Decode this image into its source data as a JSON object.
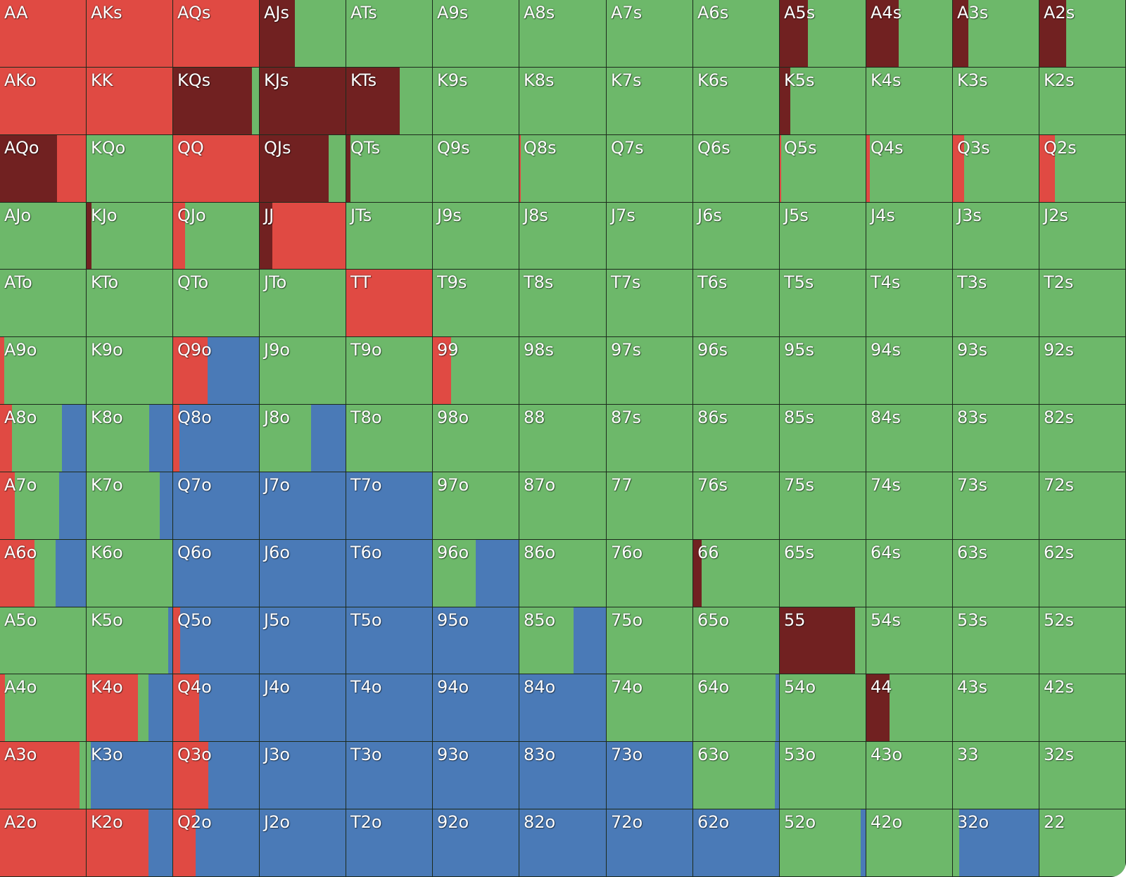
{
  "colors": {
    "raise": "#e04a43",
    "allin": "#712121",
    "call": "#6db86a",
    "fold": "#4a7ab7"
  },
  "rows": [
    [
      {
        "hand": "AA",
        "mix": {
          "raise": 1.0
        }
      },
      {
        "hand": "AKs",
        "mix": {
          "raise": 1.0
        }
      },
      {
        "hand": "AQs",
        "mix": {
          "raise": 1.0
        }
      },
      {
        "hand": "AJs",
        "mix": {
          "allin": 0.41,
          "call": 0.59
        }
      },
      {
        "hand": "ATs",
        "mix": {
          "call": 1.0
        }
      },
      {
        "hand": "A9s",
        "mix": {
          "call": 1.0
        }
      },
      {
        "hand": "A8s",
        "mix": {
          "call": 1.0
        }
      },
      {
        "hand": "A7s",
        "mix": {
          "call": 1.0
        }
      },
      {
        "hand": "A6s",
        "mix": {
          "call": 1.0
        }
      },
      {
        "hand": "A5s",
        "mix": {
          "allin": 0.33,
          "call": 0.67
        }
      },
      {
        "hand": "A4s",
        "mix": {
          "allin": 0.38,
          "call": 0.62
        }
      },
      {
        "hand": "A3s",
        "mix": {
          "allin": 0.18,
          "call": 0.82
        }
      },
      {
        "hand": "A2s",
        "mix": {
          "allin": 0.31,
          "call": 0.69
        }
      }
    ],
    [
      {
        "hand": "AKo",
        "mix": {
          "raise": 1.0
        }
      },
      {
        "hand": "KK",
        "mix": {
          "raise": 1.0
        }
      },
      {
        "hand": "KQs",
        "mix": {
          "allin": 0.92,
          "call": 0.08
        }
      },
      {
        "hand": "KJs",
        "mix": {
          "allin": 1.0
        }
      },
      {
        "hand": "KTs",
        "mix": {
          "allin": 0.62,
          "call": 0.38
        }
      },
      {
        "hand": "K9s",
        "mix": {
          "call": 1.0
        }
      },
      {
        "hand": "K8s",
        "mix": {
          "call": 1.0
        }
      },
      {
        "hand": "K7s",
        "mix": {
          "call": 1.0
        }
      },
      {
        "hand": "K6s",
        "mix": {
          "call": 1.0
        }
      },
      {
        "hand": "K5s",
        "mix": {
          "allin": 0.12,
          "call": 0.88
        }
      },
      {
        "hand": "K4s",
        "mix": {
          "call": 1.0
        }
      },
      {
        "hand": "K3s",
        "mix": {
          "call": 1.0
        }
      },
      {
        "hand": "K2s",
        "mix": {
          "call": 1.0
        }
      }
    ],
    [
      {
        "hand": "AQo",
        "mix": {
          "allin": 0.66,
          "raise": 0.34
        }
      },
      {
        "hand": "KQo",
        "mix": {
          "call": 1.0
        }
      },
      {
        "hand": "QQ",
        "mix": {
          "raise": 1.0
        }
      },
      {
        "hand": "QJs",
        "mix": {
          "allin": 0.8,
          "call": 0.2
        }
      },
      {
        "hand": "QTs",
        "mix": {
          "allin": 0.05,
          "call": 0.95
        }
      },
      {
        "hand": "Q9s",
        "mix": {
          "call": 1.0
        }
      },
      {
        "hand": "Q8s",
        "mix": {
          "raise": 0.02,
          "call": 0.98
        }
      },
      {
        "hand": "Q7s",
        "mix": {
          "call": 1.0
        }
      },
      {
        "hand": "Q6s",
        "mix": {
          "call": 1.0
        }
      },
      {
        "hand": "Q5s",
        "mix": {
          "raise": 0.02,
          "call": 0.98
        }
      },
      {
        "hand": "Q4s",
        "mix": {
          "raise": 0.04,
          "call": 0.96
        }
      },
      {
        "hand": "Q3s",
        "mix": {
          "raise": 0.13,
          "call": 0.87
        }
      },
      {
        "hand": "Q2s",
        "mix": {
          "raise": 0.18,
          "call": 0.82
        }
      }
    ],
    [
      {
        "hand": "AJo",
        "mix": {
          "call": 1.0
        }
      },
      {
        "hand": "KJo",
        "mix": {
          "allin": 0.06,
          "call": 0.94
        }
      },
      {
        "hand": "QJo",
        "mix": {
          "raise": 0.14,
          "call": 0.86
        }
      },
      {
        "hand": "JJ",
        "mix": {
          "allin": 0.15,
          "raise": 0.85
        }
      },
      {
        "hand": "JTs",
        "mix": {
          "call": 1.0
        }
      },
      {
        "hand": "J9s",
        "mix": {
          "call": 1.0
        }
      },
      {
        "hand": "J8s",
        "mix": {
          "call": 1.0
        }
      },
      {
        "hand": "J7s",
        "mix": {
          "call": 1.0
        }
      },
      {
        "hand": "J6s",
        "mix": {
          "call": 1.0
        }
      },
      {
        "hand": "J5s",
        "mix": {
          "call": 1.0
        }
      },
      {
        "hand": "J4s",
        "mix": {
          "call": 1.0
        }
      },
      {
        "hand": "J3s",
        "mix": {
          "call": 1.0
        }
      },
      {
        "hand": "J2s",
        "mix": {
          "call": 1.0
        }
      }
    ],
    [
      {
        "hand": "ATo",
        "mix": {
          "call": 1.0
        }
      },
      {
        "hand": "KTo",
        "mix": {
          "call": 1.0
        }
      },
      {
        "hand": "QTo",
        "mix": {
          "call": 1.0
        }
      },
      {
        "hand": "JTo",
        "mix": {
          "call": 1.0
        }
      },
      {
        "hand": "TT",
        "mix": {
          "raise": 1.0
        }
      },
      {
        "hand": "T9s",
        "mix": {
          "call": 1.0
        }
      },
      {
        "hand": "T8s",
        "mix": {
          "call": 1.0
        }
      },
      {
        "hand": "T7s",
        "mix": {
          "call": 1.0
        }
      },
      {
        "hand": "T6s",
        "mix": {
          "call": 1.0
        }
      },
      {
        "hand": "T5s",
        "mix": {
          "call": 1.0
        }
      },
      {
        "hand": "T4s",
        "mix": {
          "call": 1.0
        }
      },
      {
        "hand": "T3s",
        "mix": {
          "call": 1.0
        }
      },
      {
        "hand": "T2s",
        "mix": {
          "call": 1.0
        }
      }
    ],
    [
      {
        "hand": "A9o",
        "mix": {
          "raise": 0.05,
          "call": 0.95
        }
      },
      {
        "hand": "K9o",
        "mix": {
          "call": 1.0
        }
      },
      {
        "hand": "Q9o",
        "mix": {
          "raise": 0.4,
          "fold": 0.6
        }
      },
      {
        "hand": "J9o",
        "mix": {
          "call": 1.0
        }
      },
      {
        "hand": "T9o",
        "mix": {
          "call": 1.0
        }
      },
      {
        "hand": "99",
        "mix": {
          "raise": 0.21,
          "call": 0.79
        }
      },
      {
        "hand": "98s",
        "mix": {
          "call": 1.0
        }
      },
      {
        "hand": "97s",
        "mix": {
          "call": 1.0
        }
      },
      {
        "hand": "96s",
        "mix": {
          "call": 1.0
        }
      },
      {
        "hand": "95s",
        "mix": {
          "call": 1.0
        }
      },
      {
        "hand": "94s",
        "mix": {
          "call": 1.0
        }
      },
      {
        "hand": "93s",
        "mix": {
          "call": 1.0
        }
      },
      {
        "hand": "92s",
        "mix": {
          "call": 1.0
        }
      }
    ],
    [
      {
        "hand": "A8o",
        "mix": {
          "raise": 0.14,
          "call": 0.58,
          "fold": 0.28
        }
      },
      {
        "hand": "K8o",
        "mix": {
          "call": 0.73,
          "fold": 0.27
        }
      },
      {
        "hand": "Q8o",
        "mix": {
          "raise": 0.07,
          "fold": 0.93
        }
      },
      {
        "hand": "J8o",
        "mix": {
          "call": 0.6,
          "fold": 0.4
        }
      },
      {
        "hand": "T8o",
        "mix": {
          "call": 1.0
        }
      },
      {
        "hand": "98o",
        "mix": {
          "call": 1.0
        }
      },
      {
        "hand": "88",
        "mix": {
          "call": 1.0
        }
      },
      {
        "hand": "87s",
        "mix": {
          "call": 1.0
        }
      },
      {
        "hand": "86s",
        "mix": {
          "call": 1.0
        }
      },
      {
        "hand": "85s",
        "mix": {
          "call": 1.0
        }
      },
      {
        "hand": "84s",
        "mix": {
          "call": 1.0
        }
      },
      {
        "hand": "83s",
        "mix": {
          "call": 1.0
        }
      },
      {
        "hand": "82s",
        "mix": {
          "call": 1.0
        }
      }
    ],
    [
      {
        "hand": "A7o",
        "mix": {
          "raise": 0.17,
          "call": 0.52,
          "fold": 0.31
        }
      },
      {
        "hand": "K7o",
        "mix": {
          "call": 0.85,
          "fold": 0.15
        }
      },
      {
        "hand": "Q7o",
        "mix": {
          "fold": 1.0
        }
      },
      {
        "hand": "J7o",
        "mix": {
          "fold": 1.0
        }
      },
      {
        "hand": "T7o",
        "mix": {
          "fold": 1.0
        }
      },
      {
        "hand": "97o",
        "mix": {
          "call": 1.0
        }
      },
      {
        "hand": "87o",
        "mix": {
          "call": 1.0
        }
      },
      {
        "hand": "77",
        "mix": {
          "call": 1.0
        }
      },
      {
        "hand": "76s",
        "mix": {
          "call": 1.0
        }
      },
      {
        "hand": "75s",
        "mix": {
          "call": 1.0
        }
      },
      {
        "hand": "74s",
        "mix": {
          "call": 1.0
        }
      },
      {
        "hand": "73s",
        "mix": {
          "call": 1.0
        }
      },
      {
        "hand": "72s",
        "mix": {
          "call": 1.0
        }
      }
    ],
    [
      {
        "hand": "A6o",
        "mix": {
          "raise": 0.4,
          "call": 0.25,
          "fold": 0.35
        }
      },
      {
        "hand": "K6o",
        "mix": {
          "call": 1.0
        }
      },
      {
        "hand": "Q6o",
        "mix": {
          "fold": 1.0
        }
      },
      {
        "hand": "J6o",
        "mix": {
          "fold": 1.0
        }
      },
      {
        "hand": "T6o",
        "mix": {
          "fold": 1.0
        }
      },
      {
        "hand": "96o",
        "mix": {
          "call": 0.5,
          "fold": 0.5
        }
      },
      {
        "hand": "86o",
        "mix": {
          "call": 1.0
        }
      },
      {
        "hand": "76o",
        "mix": {
          "call": 1.0
        }
      },
      {
        "hand": "66",
        "mix": {
          "allin": 0.1,
          "call": 0.9
        }
      },
      {
        "hand": "65s",
        "mix": {
          "call": 1.0
        }
      },
      {
        "hand": "64s",
        "mix": {
          "call": 1.0
        }
      },
      {
        "hand": "63s",
        "mix": {
          "call": 1.0
        }
      },
      {
        "hand": "62s",
        "mix": {
          "call": 1.0
        }
      }
    ],
    [
      {
        "hand": "A5o",
        "mix": {
          "call": 1.0
        }
      },
      {
        "hand": "K5o",
        "mix": {
          "call": 0.95,
          "fold": 0.05
        }
      },
      {
        "hand": "Q5o",
        "mix": {
          "raise": 0.08,
          "fold": 0.92
        }
      },
      {
        "hand": "J5o",
        "mix": {
          "fold": 1.0
        }
      },
      {
        "hand": "T5o",
        "mix": {
          "fold": 1.0
        }
      },
      {
        "hand": "95o",
        "mix": {
          "fold": 1.0
        }
      },
      {
        "hand": "85o",
        "mix": {
          "call": 0.63,
          "fold": 0.37
        }
      },
      {
        "hand": "75o",
        "mix": {
          "call": 1.0
        }
      },
      {
        "hand": "65o",
        "mix": {
          "call": 1.0
        }
      },
      {
        "hand": "55",
        "mix": {
          "allin": 0.88,
          "call": 0.12
        }
      },
      {
        "hand": "54s",
        "mix": {
          "call": 1.0
        }
      },
      {
        "hand": "53s",
        "mix": {
          "call": 1.0
        }
      },
      {
        "hand": "52s",
        "mix": {
          "call": 1.0
        }
      }
    ],
    [
      {
        "hand": "A4o",
        "mix": {
          "raise": 0.06,
          "call": 0.94
        }
      },
      {
        "hand": "K4o",
        "mix": {
          "raise": 0.6,
          "call": 0.12,
          "fold": 0.28
        }
      },
      {
        "hand": "Q4o",
        "mix": {
          "raise": 0.3,
          "fold": 0.7
        }
      },
      {
        "hand": "J4o",
        "mix": {
          "fold": 1.0
        }
      },
      {
        "hand": "T4o",
        "mix": {
          "fold": 1.0
        }
      },
      {
        "hand": "94o",
        "mix": {
          "fold": 1.0
        }
      },
      {
        "hand": "84o",
        "mix": {
          "fold": 1.0
        }
      },
      {
        "hand": "74o",
        "mix": {
          "call": 1.0
        }
      },
      {
        "hand": "64o",
        "mix": {
          "fold": 0.04,
          "call": 0.96
        }
      },
      {
        "hand": "54o",
        "mix": {
          "call": 1.0
        }
      },
      {
        "hand": "44",
        "mix": {
          "allin": 0.27,
          "call": 0.73
        }
      },
      {
        "hand": "43s",
        "mix": {
          "call": 1.0
        }
      },
      {
        "hand": "42s",
        "mix": {
          "call": 1.0
        }
      }
    ],
    [
      {
        "hand": "A3o",
        "mix": {
          "raise": 0.93,
          "call": 0.07
        }
      },
      {
        "hand": "K3o",
        "mix": {
          "call": 0.05,
          "fold": 0.95
        }
      },
      {
        "hand": "Q3o",
        "mix": {
          "raise": 0.41,
          "fold": 0.59
        }
      },
      {
        "hand": "J3o",
        "mix": {
          "fold": 1.0
        }
      },
      {
        "hand": "T3o",
        "mix": {
          "fold": 1.0
        }
      },
      {
        "hand": "93o",
        "mix": {
          "fold": 1.0
        }
      },
      {
        "hand": "83o",
        "mix": {
          "fold": 1.0
        }
      },
      {
        "hand": "73o",
        "mix": {
          "fold": 1.0
        }
      },
      {
        "hand": "63o",
        "mix": {
          "call": 0.95,
          "fold": 0.05
        }
      },
      {
        "hand": "53o",
        "mix": {
          "call": 1.0
        }
      },
      {
        "hand": "43o",
        "mix": {
          "call": 1.0
        }
      },
      {
        "hand": "33",
        "mix": {
          "call": 1.0
        }
      },
      {
        "hand": "32s",
        "mix": {
          "call": 1.0
        }
      }
    ],
    [
      {
        "hand": "A2o",
        "mix": {
          "raise": 1.0
        }
      },
      {
        "hand": "K2o",
        "mix": {
          "raise": 0.72,
          "fold": 0.28
        }
      },
      {
        "hand": "Q2o",
        "mix": {
          "raise": 0.26,
          "fold": 0.74
        }
      },
      {
        "hand": "J2o",
        "mix": {
          "fold": 1.0
        }
      },
      {
        "hand": "T2o",
        "mix": {
          "fold": 1.0
        }
      },
      {
        "hand": "92o",
        "mix": {
          "fold": 1.0
        }
      },
      {
        "hand": "82o",
        "mix": {
          "fold": 1.0
        }
      },
      {
        "hand": "72o",
        "mix": {
          "fold": 1.0
        }
      },
      {
        "hand": "62o",
        "mix": {
          "fold": 1.0
        }
      },
      {
        "hand": "52o",
        "mix": {
          "call": 0.94,
          "fold": 0.06
        }
      },
      {
        "hand": "42o",
        "mix": {
          "call": 1.0
        }
      },
      {
        "hand": "32o",
        "mix": {
          "call": 0.07,
          "fold": 0.93
        }
      },
      {
        "hand": "22",
        "mix": {
          "call": 1.0
        }
      }
    ]
  ]
}
